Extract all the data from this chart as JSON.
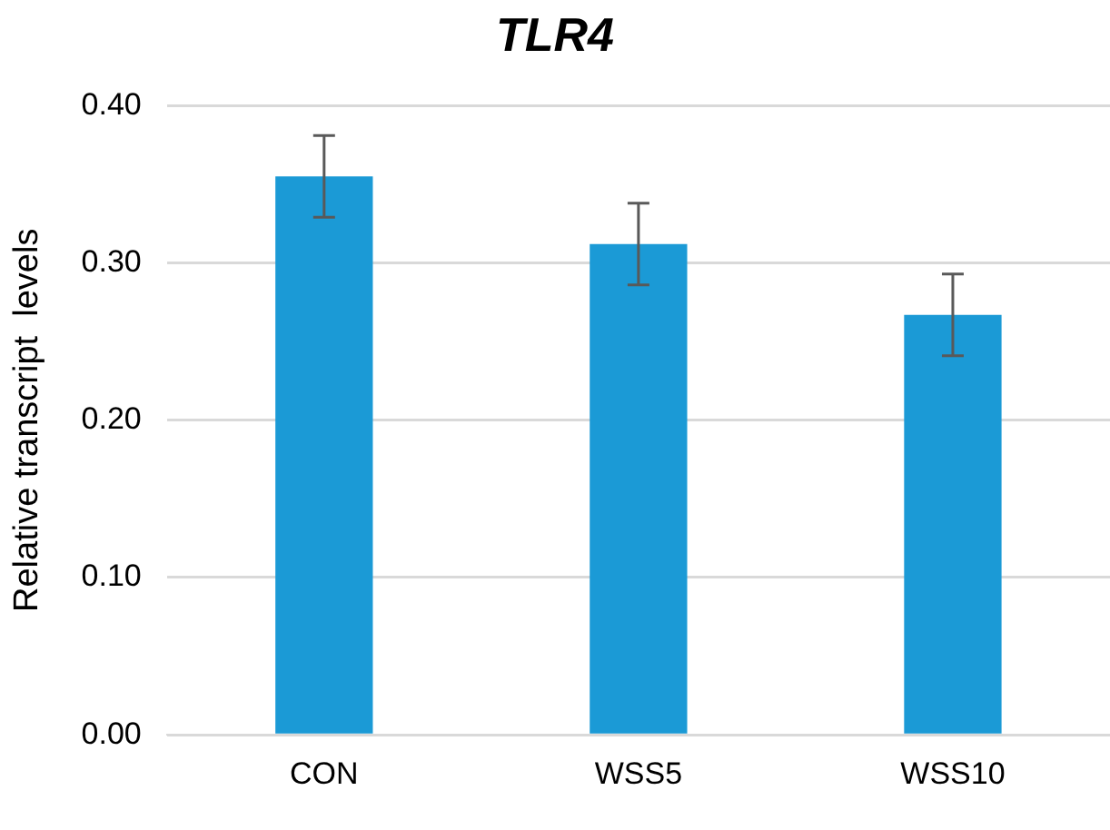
{
  "chart_data": {
    "type": "bar",
    "title": "TLR4",
    "ylabel": "Relative transcript  levels",
    "categories": [
      "CON",
      "WSS5",
      "WSS10"
    ],
    "values": [
      0.355,
      0.312,
      0.267
    ],
    "errors": [
      0.026,
      0.026,
      0.026
    ],
    "color": "#1b9ad6",
    "ylim": [
      0,
      0.4
    ],
    "yticks": [
      {
        "value": 0,
        "label": "0.00"
      },
      {
        "value": 0.1,
        "label": "0.10"
      },
      {
        "value": 0.2,
        "label": "0.20"
      },
      {
        "value": 0.3,
        "label": "0.30"
      },
      {
        "value": 0.4,
        "label": "0.40"
      }
    ],
    "grid": "y"
  }
}
